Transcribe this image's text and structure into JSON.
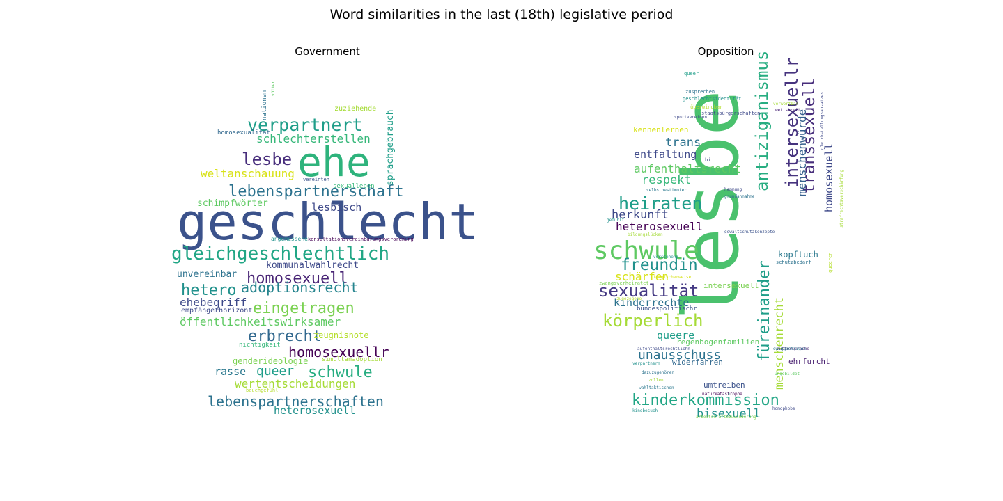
{
  "title": "Word similarities in the last (18th) legislative period",
  "chart_data": [
    {
      "type": "wordcloud",
      "title": "Government",
      "words": [
        {
          "text": "geschlecht",
          "weight": 1.0,
          "color": "#3b528b"
        },
        {
          "text": "ehe",
          "weight": 0.9,
          "color": "#2eb37c"
        },
        {
          "text": "gleichgeschlechtlich",
          "weight": 0.52,
          "color": "#21a685"
        },
        {
          "text": "verpartnert",
          "weight": 0.47,
          "color": "#1f9e89"
        },
        {
          "text": "lebenspartnerschaft",
          "weight": 0.45,
          "color": "#2c728e"
        },
        {
          "text": "lesbe",
          "weight": 0.46,
          "color": "#472d7b"
        },
        {
          "text": "homosexuell",
          "weight": 0.43,
          "color": "#482475"
        },
        {
          "text": "hetero",
          "weight": 0.43,
          "color": "#21918c"
        },
        {
          "text": "adoptionsrecht",
          "weight": 0.39,
          "color": "#25848e"
        },
        {
          "text": "eingetragen",
          "weight": 0.43,
          "color": "#7ad151"
        },
        {
          "text": "erbrecht",
          "weight": 0.43,
          "color": "#31688e"
        },
        {
          "text": "homosexuellr",
          "weight": 0.4,
          "color": "#440154"
        },
        {
          "text": "schwule",
          "weight": 0.42,
          "color": "#27ad81"
        },
        {
          "text": "lebenspartnerschaften",
          "weight": 0.37,
          "color": "#2c728e"
        },
        {
          "text": "schlechterstellen",
          "weight": 0.32,
          "color": "#35b779"
        },
        {
          "text": "weltanschauung",
          "weight": 0.32,
          "color": "#d8e219"
        },
        {
          "text": "öffentlichkeitswirksamer",
          "weight": 0.33,
          "color": "#5ec962"
        },
        {
          "text": "wertentscheidungen",
          "weight": 0.31,
          "color": "#a5db36"
        },
        {
          "text": "heterosexuell",
          "weight": 0.3,
          "color": "#21918c"
        },
        {
          "text": "queer",
          "weight": 0.36,
          "color": "#1f9e89"
        },
        {
          "text": "rasse",
          "weight": 0.28,
          "color": "#2a788e"
        },
        {
          "text": "ehebegriff",
          "weight": 0.3,
          "color": "#3e4989"
        },
        {
          "text": "lesbisch",
          "weight": 0.27,
          "color": "#3e4989"
        },
        {
          "text": "schimpfwörter",
          "weight": 0.23,
          "color": "#5ec962"
        },
        {
          "text": "unvereinbar",
          "weight": 0.23,
          "color": "#2c728e"
        },
        {
          "text": "kommunalwahlrecht",
          "weight": 0.23,
          "color": "#3e4989"
        },
        {
          "text": "sprachgebrauch",
          "weight": 0.24,
          "color": "#1f9e89"
        },
        {
          "text": "zeugnisnote",
          "weight": 0.22,
          "color": "#b5de2b"
        },
        {
          "text": "genderideologie",
          "weight": 0.22,
          "color": "#7ad151"
        },
        {
          "text": "zuziehende",
          "weight": 0.17,
          "color": "#a5db36"
        },
        {
          "text": "nationen",
          "weight": 0.15,
          "color": "#2c728e"
        },
        {
          "text": "völker",
          "weight": 0.11,
          "color": "#5ec962"
        },
        {
          "text": "homosexualität",
          "weight": 0.15,
          "color": "#31688e"
        },
        {
          "text": "empfängerhorizont",
          "weight": 0.17,
          "color": "#3e4989"
        },
        {
          "text": "nichtigkeit",
          "weight": 0.15,
          "color": "#35b779"
        },
        {
          "text": "simultanadoption",
          "weight": 0.14,
          "color": "#a5db36"
        },
        {
          "text": "angemessene",
          "weight": 0.13,
          "color": "#21918c"
        },
        {
          "text": "konsultationsvereinbarungsverordnung",
          "weight": 0.11,
          "color": "#440154"
        },
        {
          "text": "sexualleben",
          "weight": 0.13,
          "color": "#35b779"
        },
        {
          "text": "vereinten",
          "weight": 0.1,
          "color": "#3b528b"
        },
        {
          "text": "bauchgefühl",
          "weight": 0.1,
          "color": "#b5de2b"
        }
      ]
    },
    {
      "type": "wordcloud",
      "title": "Opposition",
      "words": [
        {
          "text": "lesbe",
          "weight": 1.0,
          "color": "#4ac16d"
        },
        {
          "text": "schwule",
          "weight": 0.6,
          "color": "#5ec962"
        },
        {
          "text": "antiziganismus",
          "weight": 0.45,
          "color": "#27ad81"
        },
        {
          "text": "intersexuellr",
          "weight": 0.45,
          "color": "#46337e"
        },
        {
          "text": "transsexuell",
          "weight": 0.43,
          "color": "#472d7b"
        },
        {
          "text": "füreinander",
          "weight": 0.43,
          "color": "#1f9e89"
        },
        {
          "text": "kinderkommission",
          "weight": 0.45,
          "color": "#21a685"
        },
        {
          "text": "heiraten",
          "weight": 0.45,
          "color": "#1f9e89"
        },
        {
          "text": "sexualität",
          "weight": 0.43,
          "color": "#443983"
        },
        {
          "text": "körperlich",
          "weight": 0.45,
          "color": "#a5db36"
        },
        {
          "text": "freundin",
          "weight": 0.42,
          "color": "#21918c"
        },
        {
          "text": "menschenrecht",
          "weight": 0.35,
          "color": "#a5db36"
        },
        {
          "text": "menschenwürde",
          "weight": 0.33,
          "color": "#355f8d"
        },
        {
          "text": "homosexuell",
          "weight": 0.3,
          "color": "#3e4989"
        },
        {
          "text": "unausschuss",
          "weight": 0.33,
          "color": "#2c728e"
        },
        {
          "text": "bisexuell",
          "weight": 0.31,
          "color": "#21918c"
        },
        {
          "text": "heterosexuell",
          "weight": 0.3,
          "color": "#440154"
        },
        {
          "text": "herkunft",
          "weight": 0.3,
          "color": "#3e4989"
        },
        {
          "text": "aufenthaltsrecht",
          "weight": 0.3,
          "color": "#5ec962"
        },
        {
          "text": "trans",
          "weight": 0.3,
          "color": "#2c728e"
        },
        {
          "text": "respekt",
          "weight": 0.3,
          "color": "#35b779"
        },
        {
          "text": "entfaltung",
          "weight": 0.28,
          "color": "#3e4989"
        },
        {
          "text": "schärfen",
          "weight": 0.28,
          "color": "#d8e219"
        },
        {
          "text": "kinderrechte",
          "weight": 0.27,
          "color": "#2c728e"
        },
        {
          "text": "queere",
          "weight": 0.28,
          "color": "#1f9e89"
        },
        {
          "text": "kopftuch",
          "weight": 0.23,
          "color": "#2a788e"
        },
        {
          "text": "umtreiben",
          "weight": 0.22,
          "color": "#3b528b"
        },
        {
          "text": "ehrfurcht",
          "weight": 0.22,
          "color": "#481f70"
        },
        {
          "text": "widerfahren",
          "weight": 0.21,
          "color": "#31688e"
        },
        {
          "text": "regenbogenfamilien",
          "weight": 0.2,
          "color": "#5ec962"
        },
        {
          "text": "intersexuell",
          "weight": 0.2,
          "color": "#7ad151"
        },
        {
          "text": "kennenlernen",
          "weight": 0.21,
          "color": "#d8e219"
        },
        {
          "text": "bundespolitischr",
          "weight": 0.17,
          "color": "#3b528b"
        },
        {
          "text": "queeren",
          "weight": 0.1,
          "color": "#b5de2b"
        },
        {
          "text": "queer",
          "weight": 0.1,
          "color": "#1f9e89"
        },
        {
          "text": "zusprechen",
          "weight": 0.1,
          "color": "#2c728e"
        },
        {
          "text": "geschlechtsidentität",
          "weight": 0.1,
          "color": "#21918c"
        },
        {
          "text": "überwindbar",
          "weight": 0.1,
          "color": "#b5de2b"
        },
        {
          "text": "staatsbürgerschaften",
          "weight": 0.1,
          "color": "#3e4989"
        },
        {
          "text": "sportvereinen",
          "weight": 0.1,
          "color": "#3e4989"
        },
        {
          "text": "verwertbar",
          "weight": 0.1,
          "color": "#a5db36"
        },
        {
          "text": "wettstreit",
          "weight": 0.1,
          "color": "#482475"
        },
        {
          "text": "selbstbestimmter",
          "weight": 0.1,
          "color": "#2a788e"
        },
        {
          "text": "hemmung",
          "weight": 0.1,
          "color": "#3e4989"
        },
        {
          "text": "grundannahme",
          "weight": 0.1,
          "color": "#2c728e"
        },
        {
          "text": "gefühlt",
          "weight": 0.1,
          "color": "#21918c"
        },
        {
          "text": "gewaltschutzkonzepte",
          "weight": 0.1,
          "color": "#3b528b"
        },
        {
          "text": "bildungslücken",
          "weight": 0.1,
          "color": "#a5db36"
        },
        {
          "text": "verstehend",
          "weight": 0.1,
          "color": "#21918c"
        },
        {
          "text": "schutzbedarf",
          "weight": 0.1,
          "color": "#2c728e"
        },
        {
          "text": "tragischerweise",
          "weight": 0.1,
          "color": "#d8e219"
        },
        {
          "text": "zwangsverheiratet",
          "weight": 0.1,
          "color": "#7ad151"
        },
        {
          "text": "zugezogene",
          "weight": 0.1,
          "color": "#b5de2b"
        },
        {
          "text": "aufenthaltsrechtlichn",
          "weight": 0.1,
          "color": "#3e4989"
        },
        {
          "text": "verpartnern",
          "weight": 0.1,
          "color": "#21918c"
        },
        {
          "text": "dazuzugehören",
          "weight": 0.1,
          "color": "#2c728e"
        },
        {
          "text": "zollen",
          "weight": 0.1,
          "color": "#a5db36"
        },
        {
          "text": "wahltaktischen",
          "weight": 0.1,
          "color": "#2a788e"
        },
        {
          "text": "naturkatastrophe",
          "weight": 0.1,
          "color": "#440154"
        },
        {
          "text": "kinobesuch",
          "weight": 0.1,
          "color": "#21918c"
        },
        {
          "text": "arbeitskräftezuwanderung",
          "weight": 0.1,
          "color": "#7ad151"
        },
        {
          "text": "homophobe",
          "weight": 0.1,
          "color": "#3e4989"
        },
        {
          "text": "muttersprache",
          "weight": 0.1,
          "color": "#472d7b"
        },
        {
          "text": "ungebildet",
          "weight": 0.1,
          "color": "#5ec962"
        },
        {
          "text": "ewiggestrigen",
          "weight": 0.1,
          "color": "#2c728e"
        },
        {
          "text": "strafrechtsverschärfung",
          "weight": 0.1,
          "color": "#a5db36"
        },
        {
          "text": "gleichstellungsansatzes",
          "weight": 0.1,
          "color": "#3e4989"
        },
        {
          "text": "bi",
          "weight": 0.1,
          "color": "#3e4989"
        }
      ]
    }
  ]
}
